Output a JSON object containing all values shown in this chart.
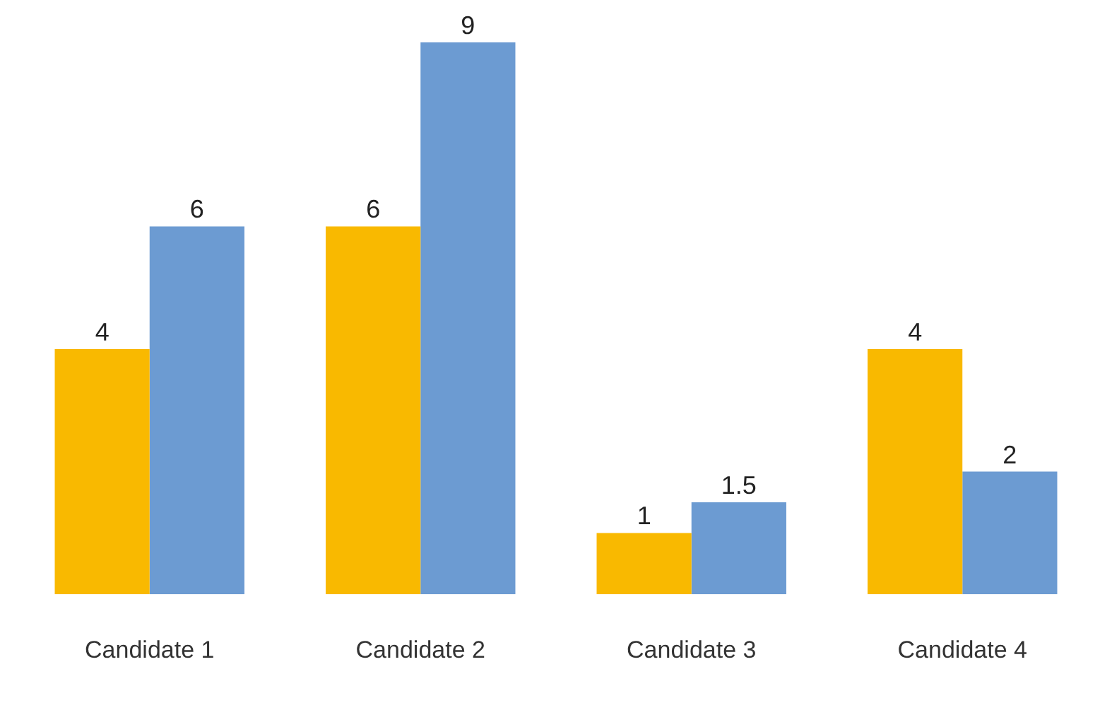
{
  "chart_data": {
    "type": "bar",
    "categories": [
      "Candidate 1",
      "Candidate 2",
      "Candidate 3",
      "Candidate 4"
    ],
    "series": [
      {
        "color": "#f9b900",
        "values": [
          4,
          6,
          1,
          4
        ]
      },
      {
        "color": "#6c9bd2",
        "values": [
          6,
          9,
          1.5,
          2
        ]
      }
    ],
    "data_labels": true,
    "grid": false,
    "legend": false
  }
}
